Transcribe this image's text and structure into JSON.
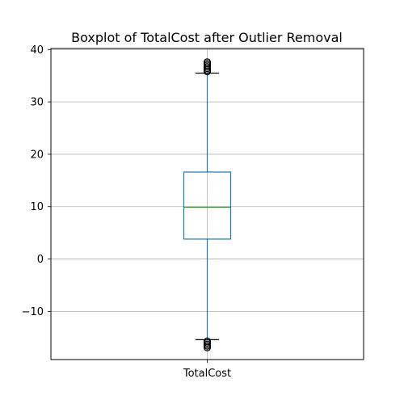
{
  "chart_data": {
    "type": "box",
    "title": "Boxplot of TotalCost after Outlier Removal",
    "xlabel": "",
    "ylabel": "",
    "categories": [
      "TotalCost"
    ],
    "ylim": [
      -19.2,
      40.2
    ],
    "yticks": [
      -10,
      0,
      10,
      20,
      30,
      40
    ],
    "ytick_labels": [
      "−10",
      "0",
      "10",
      "20",
      "30",
      "40"
    ],
    "grid": true,
    "boxes": [
      {
        "name": "TotalCost",
        "whisker_low": -15.4,
        "q1": 3.8,
        "median": 9.9,
        "q3": 16.6,
        "whisker_high": 35.5,
        "outliers_high": [
          35.8,
          36.1,
          36.4,
          36.7,
          37.0,
          37.3,
          37.6
        ],
        "outliers_low": [
          -15.7,
          -16.0,
          -16.3,
          -16.6,
          -16.9
        ]
      }
    ],
    "colors": {
      "box": "#1f77b4",
      "median": "#2ca02c",
      "whisker": "#1f77b4",
      "cap": "#000000",
      "flier": "#000000",
      "grid": "#b0b0b0"
    }
  }
}
